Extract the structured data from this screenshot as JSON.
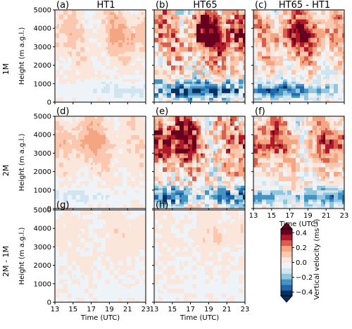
{
  "chart_data": {
    "type": "heatmap",
    "rows": [
      "1M",
      "2M",
      "2M - 1M"
    ],
    "columns": [
      "HT1",
      "HT65",
      "HT65 - HT1"
    ],
    "xlabel": "Time (UTC)",
    "ylabel": "Height (m a.g.l.)",
    "xlim": [
      13,
      23
    ],
    "ylim": [
      0,
      5000
    ],
    "xticks": [
      "13",
      "15",
      "17",
      "19",
      "21",
      "23"
    ],
    "yticks": [
      "0",
      "1000",
      "2000",
      "3000",
      "4000",
      "5000"
    ],
    "colorbar": {
      "label": "Vertical velocity (ms⁻¹)",
      "ticks": [
        "−0.4",
        "−0.2",
        "0.0",
        "0.2",
        "0.4"
      ],
      "range": [
        -0.45,
        0.45
      ],
      "colors": [
        "#053061",
        "#2166ac",
        "#4393c3",
        "#92c5de",
        "#d1e5f0",
        "#eef3f8",
        "#fbe6dc",
        "#fbc7ae",
        "#f4a582",
        "#d6604d",
        "#b2182b",
        "#67001f"
      ]
    },
    "panels": [
      {
        "id": "a",
        "letter": "(a)",
        "title": "HT1",
        "row": 0,
        "col": 0,
        "mean": 0.05,
        "amp": 0.15,
        "noise": 0.05,
        "lowneg": -0.12,
        "upper": 0.15,
        "xt": "",
        "yt": "y"
      },
      {
        "id": "b",
        "letter": "(b)",
        "title": "HT65",
        "row": 0,
        "col": 1,
        "mean": 0.12,
        "amp": 0.3,
        "noise": 0.22,
        "lowneg": -0.45,
        "upper": 0.4,
        "xt": "",
        "yt": ""
      },
      {
        "id": "c",
        "letter": "(c)",
        "title": "HT65 - HT1",
        "row": 0,
        "col": 2,
        "mean": 0.1,
        "amp": 0.25,
        "noise": 0.15,
        "lowneg": -0.35,
        "upper": 0.3,
        "xt": "",
        "yt": ""
      },
      {
        "id": "d",
        "letter": "(d)",
        "title": "",
        "row": 1,
        "col": 0,
        "mean": 0.05,
        "amp": 0.12,
        "noise": 0.05,
        "lowneg": -0.12,
        "upper": 0.15,
        "xt": "",
        "yt": "y"
      },
      {
        "id": "e",
        "letter": "(e)",
        "title": "",
        "row": 1,
        "col": 1,
        "mean": 0.12,
        "amp": 0.3,
        "noise": 0.22,
        "lowneg": -0.45,
        "upper": 0.4,
        "xt": "",
        "yt": ""
      },
      {
        "id": "f",
        "letter": "(f)",
        "title": "",
        "row": 1,
        "col": 2,
        "mean": 0.1,
        "amp": 0.25,
        "noise": 0.15,
        "lowneg": -0.35,
        "upper": 0.3,
        "xt": "x",
        "yt": ""
      },
      {
        "id": "g",
        "letter": "(g)",
        "title": "",
        "row": 2,
        "col": 0,
        "mean": 0.0,
        "amp": 0.05,
        "noise": 0.04,
        "lowneg": -0.03,
        "upper": 0.05,
        "xt": "x",
        "yt": "y"
      },
      {
        "id": "h",
        "letter": "(h)",
        "title": "",
        "row": 2,
        "col": 1,
        "mean": 0.0,
        "amp": 0.05,
        "noise": 0.05,
        "lowneg": -0.03,
        "upper": 0.05,
        "xt": "x",
        "yt": ""
      }
    ]
  }
}
